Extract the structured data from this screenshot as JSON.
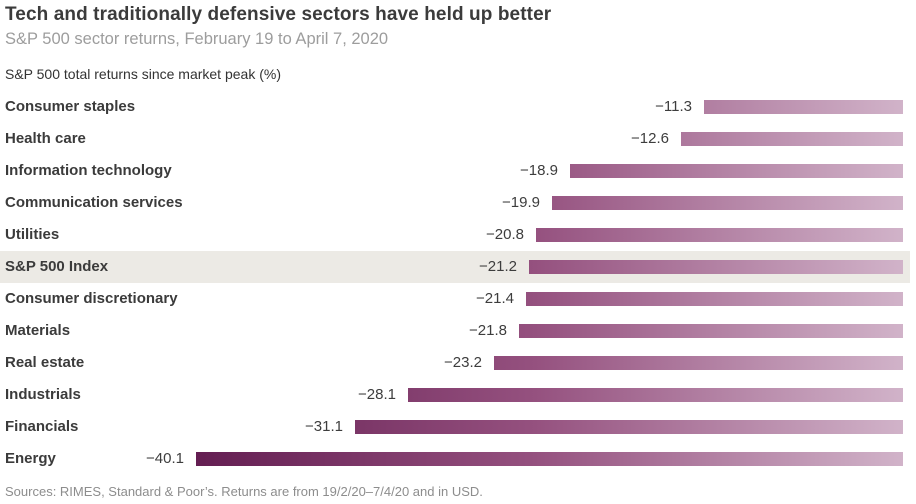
{
  "header": {
    "title": "Tech and traditionally defensive sectors have held up better",
    "subtitle": "S&P 500 sector returns, February 19 to April 7, 2020",
    "axis_note": "S&P 500 total returns since market peak (%)"
  },
  "footer": {
    "source": "Sources: RIMES, Standard & Poor’s. Returns are from 19/2/20–7/4/20 and in USD."
  },
  "colors": {
    "bar_gradient_dark": "#641e52",
    "bar_gradient_mid": "#95517f",
    "bar_gradient_light": "#d1b3c9",
    "highlight_row_bg": "#eceae5",
    "title_text": "#3b3b3b",
    "subtitle_text": "#9d9d9d",
    "label_text": "#3b3b3b",
    "source_text": "#8d8d8d"
  },
  "chart_data": {
    "type": "bar",
    "orientation": "horizontal",
    "title": "Tech and traditionally defensive sectors have held up better",
    "subtitle": "S&P 500 sector returns, February 19 to April 7, 2020",
    "value_axis_label": "S&P 500 total returns since market peak (%)",
    "unit": "%",
    "categories": [
      "Consumer staples",
      "Health care",
      "Information technology",
      "Communication services",
      "Utilities",
      "S&P 500 Index",
      "Consumer discretionary",
      "Materials",
      "Real estate",
      "Industrials",
      "Financials",
      "Energy"
    ],
    "values": [
      -11.3,
      -12.6,
      -18.9,
      -19.9,
      -20.8,
      -21.2,
      -21.4,
      -21.8,
      -23.2,
      -28.1,
      -31.1,
      -40.1
    ],
    "value_labels": [
      "-11.3",
      "-12.6",
      "-18.9",
      "-19.9",
      "-20.8",
      "-21.2",
      "-21.4",
      "-21.8",
      "-23.2",
      "-28.1",
      "-31.1",
      "-40.1"
    ],
    "highlighted_category": "S&P 500 Index",
    "xlim": [
      -40.1,
      0
    ],
    "legend": "none",
    "grid": "off",
    "bar_style": "gradient shared across plot area, dark at far left to light at right edge",
    "source": "Sources: RIMES, Standard & Poor’s. Returns are from 19/2/20–7/4/20 and in USD."
  }
}
